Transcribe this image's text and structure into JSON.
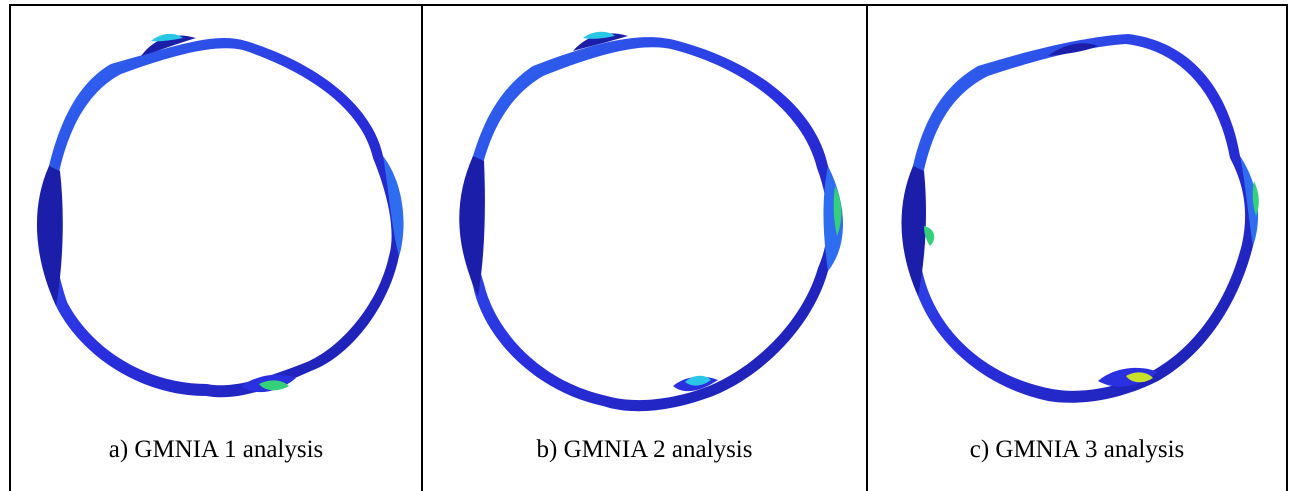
{
  "figure": {
    "panels": [
      {
        "caption": "a) GMNIA 1 analysis"
      },
      {
        "caption": "b) GMNIA 2 analysis"
      },
      {
        "caption": "c) GMNIA 3 analysis"
      }
    ]
  },
  "colors": {
    "ring_dark": "#1a1ea8",
    "ring_main": "#2a2fe0",
    "ring_light": "#2f6df0",
    "hotspot_cyan": "#29c6e6",
    "hotspot_green": "#35d07a",
    "hotspot_yellow": "#c8e22a"
  }
}
